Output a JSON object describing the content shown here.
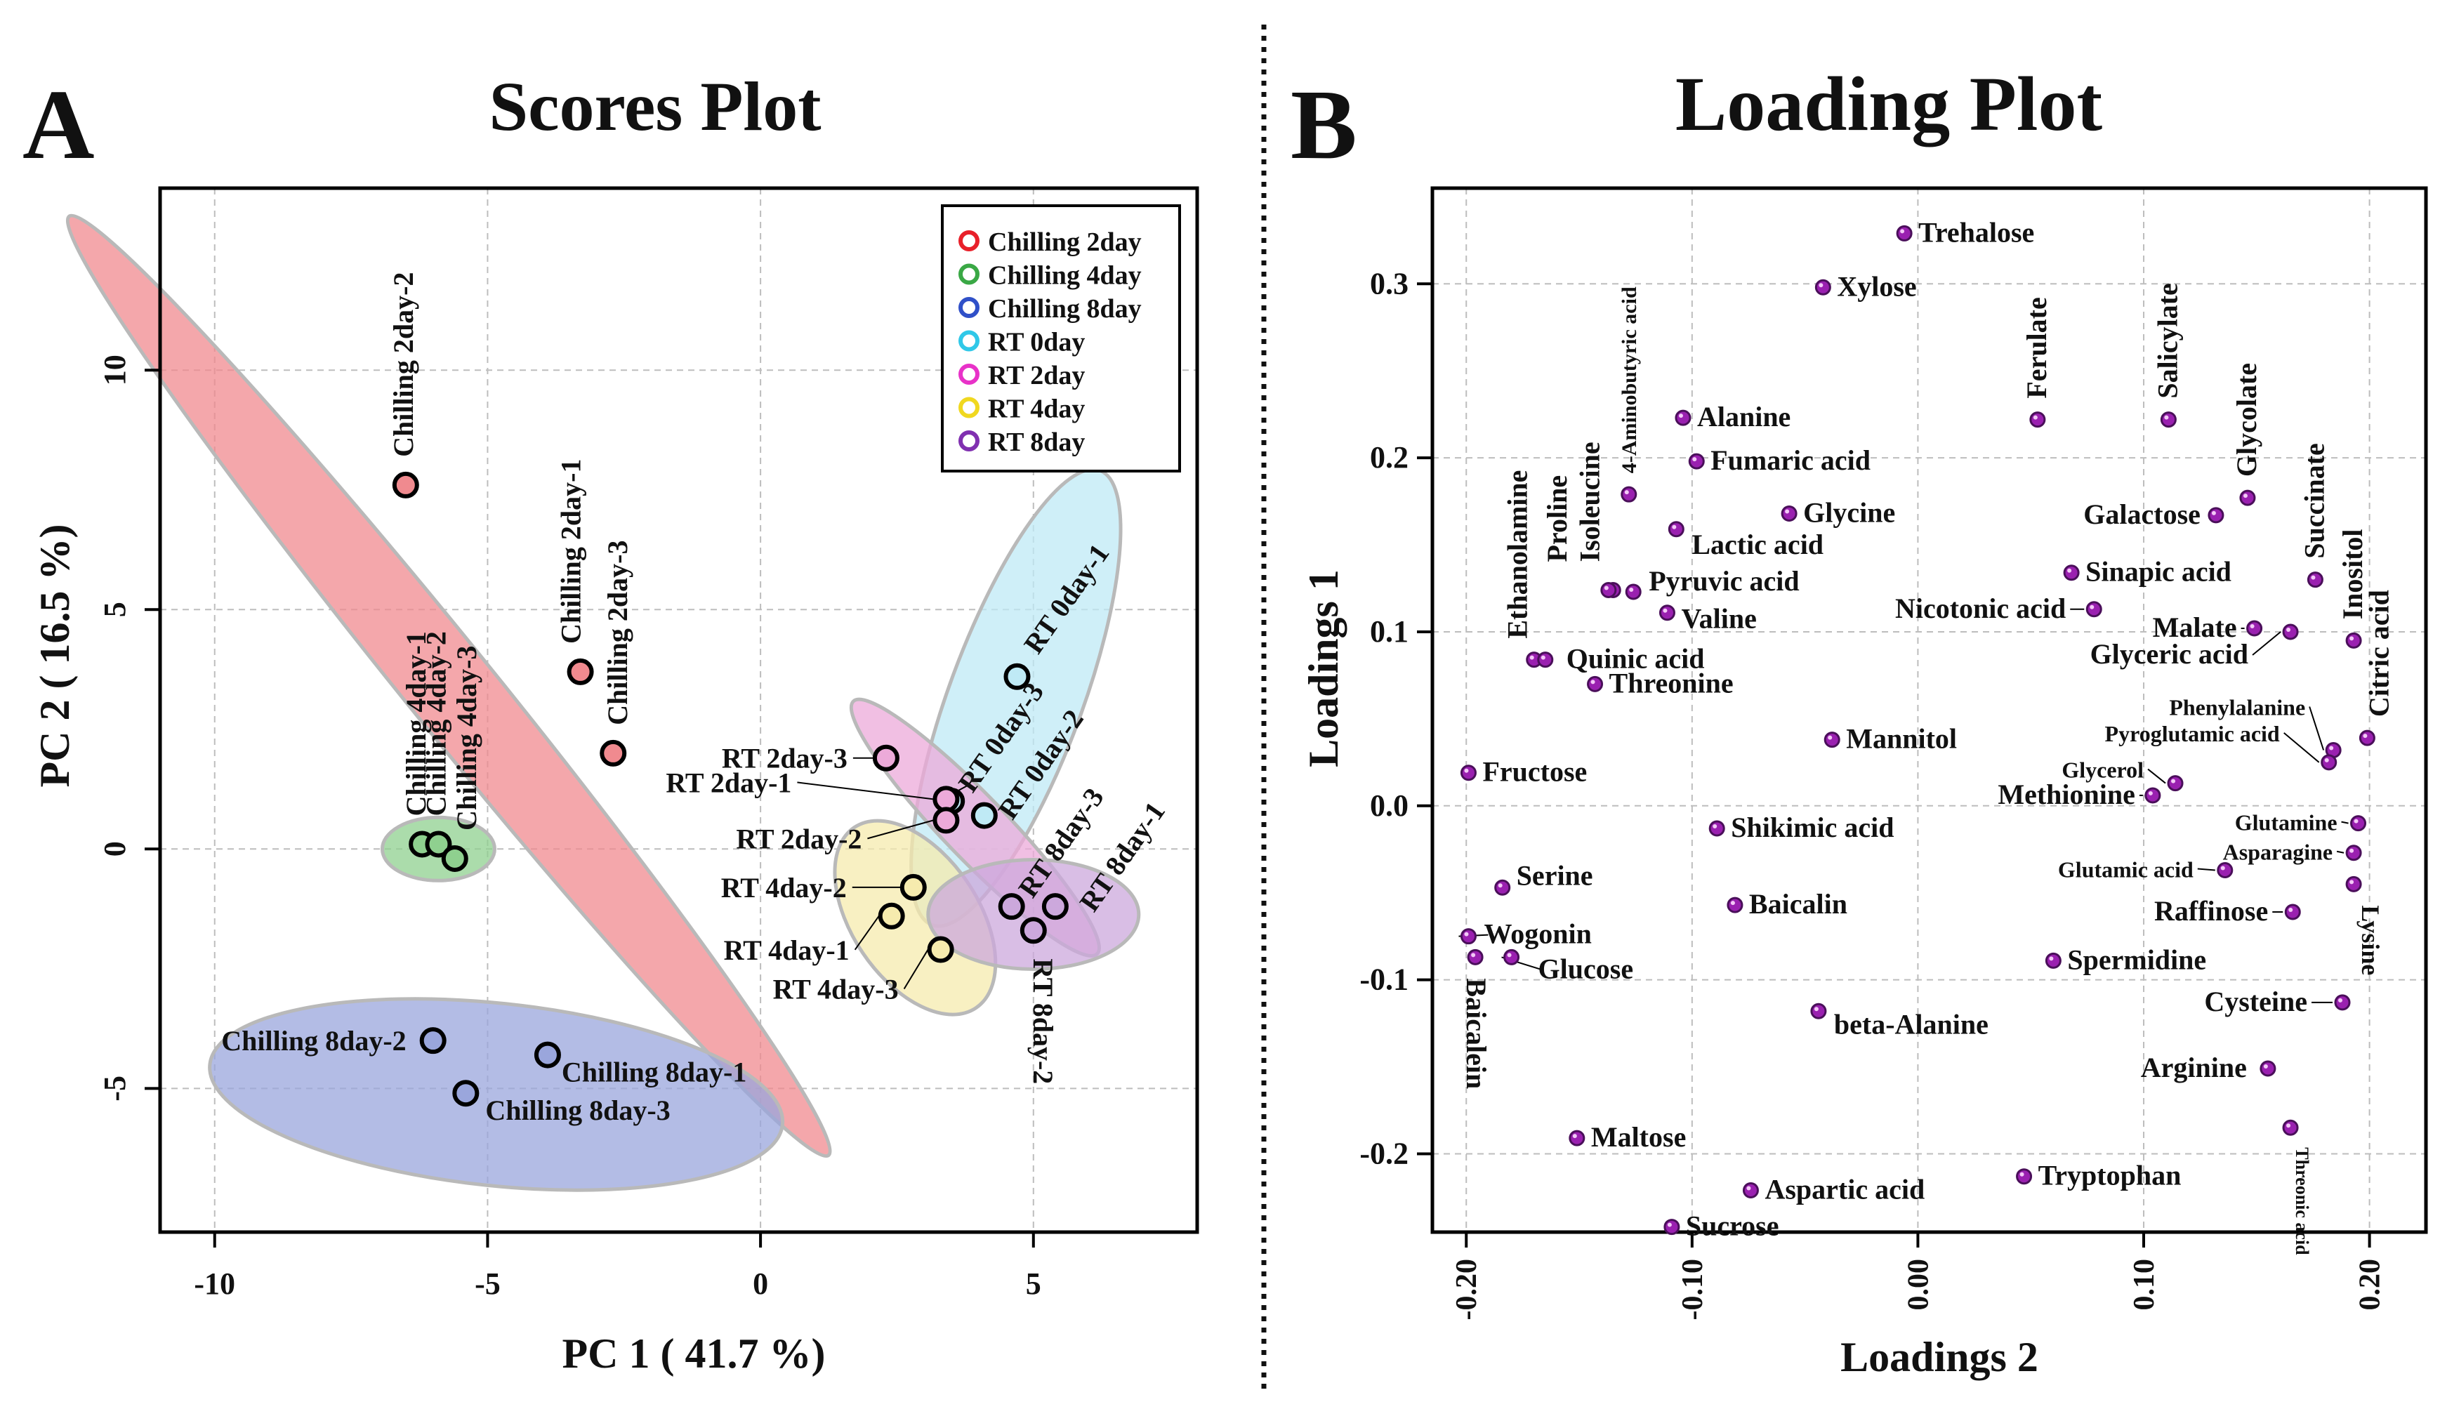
{
  "panel_a": {
    "letter": "A",
    "title": "Scores Plot",
    "xlabel": "PC 1 ( 41.7 %)",
    "ylabel": "PC 2 ( 16.5 %)"
  },
  "panel_b": {
    "letter": "B",
    "title": "Loading Plot",
    "xlabel": "Loadings 2",
    "ylabel": "Loadings 1"
  },
  "chart_data": [
    {
      "type": "scatter",
      "title": "Scores Plot",
      "xlabel": "PC 1 ( 41.7 %)",
      "ylabel": "PC 2 ( 16.5 %)",
      "xlim": [
        -11,
        8
      ],
      "ylim": [
        -8,
        13.8
      ],
      "grid": true,
      "legend_position": "top-right",
      "xticks": [
        -10,
        -5,
        0,
        5
      ],
      "yticks": [
        -5,
        0,
        5,
        10
      ],
      "series": [
        {
          "name": "Chilling 2day",
          "color": "#e8202a",
          "fill": "#f08a8f",
          "points": [
            {
              "label": "Chilling 2day-1",
              "x": -3.3,
              "y": 3.7
            },
            {
              "label": "Chilling 2day-2",
              "x": -6.5,
              "y": 7.6
            },
            {
              "label": "Chilling 2day-3",
              "x": -2.7,
              "y": 2.0
            }
          ]
        },
        {
          "name": "Chilling 4day",
          "color": "#3aa845",
          "fill": "#8fd08f",
          "points": [
            {
              "label": "Chilling 4day-1",
              "x": -6.2,
              "y": 0.1
            },
            {
              "label": "Chilling 4day-2",
              "x": -5.9,
              "y": 0.1
            },
            {
              "label": "Chilling 4day-3",
              "x": -5.6,
              "y": -0.2
            }
          ]
        },
        {
          "name": "Chilling 8day",
          "color": "#3050c8",
          "fill": "#9aa6dc",
          "points": [
            {
              "label": "Chilling 8day-1",
              "x": -3.9,
              "y": -4.3
            },
            {
              "label": "Chilling 8day-2",
              "x": -6.0,
              "y": -4.0
            },
            {
              "label": "Chilling 8day-3",
              "x": -5.4,
              "y": -5.1
            }
          ]
        },
        {
          "name": "RT 0day",
          "color": "#30c8e8",
          "fill": "#bfeaf5",
          "points": [
            {
              "label": "RT 0day-1",
              "x": 4.7,
              "y": 3.6
            },
            {
              "label": "RT 0day-2",
              "x": 4.1,
              "y": 0.7
            },
            {
              "label": "RT 0day-3",
              "x": 3.5,
              "y": 1.0
            }
          ]
        },
        {
          "name": "RT 2day",
          "color": "#e832c8",
          "fill": "#ecaad9",
          "points": [
            {
              "label": "RT 2day-1",
              "x": 3.4,
              "y": 0.6
            },
            {
              "label": "RT 2day-2",
              "x": 3.4,
              "y": 0.6
            },
            {
              "label": "RT 2day-3",
              "x": 2.3,
              "y": 1.9
            }
          ]
        },
        {
          "name": "RT 4day",
          "color": "#f0d820",
          "fill": "#f6ebae",
          "points": [
            {
              "label": "RT 4day-1",
              "x": 2.4,
              "y": -1.4
            },
            {
              "label": "RT 4day-2",
              "x": 2.8,
              "y": -0.8
            },
            {
              "label": "RT 4day-3",
              "x": 3.3,
              "y": -2.1
            }
          ]
        },
        {
          "name": "RT 8day",
          "color": "#8030b0",
          "fill": "#cca8dc",
          "points": [
            {
              "label": "RT 8day-1",
              "x": 5.4,
              "y": -1.2
            },
            {
              "label": "RT 8day-2",
              "x": 5.0,
              "y": -1.7
            },
            {
              "label": "RT 8day-3",
              "x": 4.6,
              "y": -1.2
            }
          ]
        }
      ]
    },
    {
      "type": "scatter",
      "title": "Loading Plot",
      "xlabel": "Loadings 2",
      "ylabel": "Loadings 1",
      "xlim": [
        -0.215,
        0.225
      ],
      "ylim": [
        -0.245,
        0.355
      ],
      "grid": true,
      "xticks": [
        "-0.20",
        "-0.10",
        "0.00",
        "0.10",
        "0.20"
      ],
      "yticks": [
        "0.3",
        "0.2",
        "0.1",
        "0.0",
        "-0.1",
        "-0.2"
      ],
      "color": "#9a20b0",
      "points": [
        {
          "label": "Trehalose",
          "x": -0.006,
          "y": 0.329
        },
        {
          "label": "Xylose",
          "x": -0.042,
          "y": 0.298
        },
        {
          "label": "Alanine",
          "x": -0.104,
          "y": 0.223
        },
        {
          "label": "Fumaric acid",
          "x": -0.098,
          "y": 0.198
        },
        {
          "label": "4-Aminobutyric acid",
          "x": -0.128,
          "y": 0.179
        },
        {
          "label": "Glycine",
          "x": -0.057,
          "y": 0.168
        },
        {
          "label": "Lactic acid",
          "x": -0.107,
          "y": 0.159
        },
        {
          "label": "Isoleucine",
          "x": -0.135,
          "y": 0.124
        },
        {
          "label": "Proline",
          "x": -0.137,
          "y": 0.124
        },
        {
          "label": "Pyruvic acid",
          "x": -0.126,
          "y": 0.123
        },
        {
          "label": "Valine",
          "x": -0.111,
          "y": 0.111
        },
        {
          "label": "Ethanolamine",
          "x": -0.17,
          "y": 0.084
        },
        {
          "label": "Quinic acid",
          "x": -0.165,
          "y": 0.084
        },
        {
          "label": "Threonine",
          "x": -0.143,
          "y": 0.07
        },
        {
          "label": "Mannitol",
          "x": -0.038,
          "y": 0.038
        },
        {
          "label": "Fructose",
          "x": -0.199,
          "y": 0.019
        },
        {
          "label": "Shikimic acid",
          "x": -0.089,
          "y": -0.013
        },
        {
          "label": "Serine",
          "x": -0.184,
          "y": -0.047
        },
        {
          "label": "Baicalin",
          "x": -0.081,
          "y": -0.057
        },
        {
          "label": "Wogonin",
          "x": -0.199,
          "y": -0.075
        },
        {
          "label": "Baicalein",
          "x": -0.196,
          "y": -0.087
        },
        {
          "label": "Glucose",
          "x": -0.18,
          "y": -0.087
        },
        {
          "label": "beta-Alanine",
          "x": -0.044,
          "y": -0.118
        },
        {
          "label": "Maltose",
          "x": -0.151,
          "y": -0.191
        },
        {
          "label": "Aspartic acid",
          "x": -0.074,
          "y": -0.221
        },
        {
          "label": "Sucrose",
          "x": -0.109,
          "y": -0.242
        },
        {
          "label": "Ferulate",
          "x": 0.053,
          "y": 0.222
        },
        {
          "label": "Salicylate",
          "x": 0.111,
          "y": 0.222
        },
        {
          "label": "Glycolate",
          "x": 0.146,
          "y": 0.177
        },
        {
          "label": "Galactose",
          "x": 0.132,
          "y": 0.167
        },
        {
          "label": "Succinate",
          "x": 0.176,
          "y": 0.13
        },
        {
          "label": "Sinapic acid",
          "x": 0.068,
          "y": 0.134
        },
        {
          "label": "Nicotonic acid",
          "x": 0.078,
          "y": 0.113
        },
        {
          "label": "Malate",
          "x": 0.149,
          "y": 0.102
        },
        {
          "label": "Glyceric acid",
          "x": 0.165,
          "y": 0.1
        },
        {
          "label": "Inositol",
          "x": 0.193,
          "y": 0.095
        },
        {
          "label": "Citric acid",
          "x": 0.199,
          "y": 0.039
        },
        {
          "label": "Phenylalanine",
          "x": 0.184,
          "y": 0.032
        },
        {
          "label": "Pyroglutamic acid",
          "x": 0.182,
          "y": 0.025
        },
        {
          "label": "Glycerol",
          "x": 0.114,
          "y": 0.013
        },
        {
          "label": "Methionine",
          "x": 0.104,
          "y": 0.006
        },
        {
          "label": "Glutamine",
          "x": 0.195,
          "y": -0.01
        },
        {
          "label": "Asparagine",
          "x": 0.193,
          "y": -0.027
        },
        {
          "label": "Glutamic acid",
          "x": 0.136,
          "y": -0.037
        },
        {
          "label": "Lysine",
          "x": 0.193,
          "y": -0.045
        },
        {
          "label": "Raffinose",
          "x": 0.166,
          "y": -0.061
        },
        {
          "label": "Spermidine",
          "x": 0.06,
          "y": -0.089
        },
        {
          "label": "Cysteine",
          "x": 0.188,
          "y": -0.113
        },
        {
          "label": "Arginine",
          "x": 0.155,
          "y": -0.151
        },
        {
          "label": "Threonic acid",
          "x": 0.165,
          "y": -0.185
        },
        {
          "label": "Tryptophan",
          "x": 0.047,
          "y": -0.213
        }
      ]
    }
  ]
}
